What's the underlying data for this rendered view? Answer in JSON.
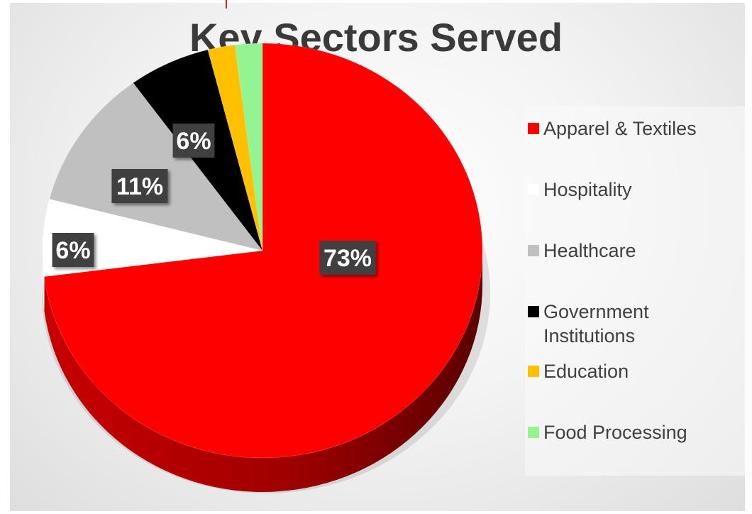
{
  "chart_data": {
    "type": "pie",
    "title": "Key Sectors Served",
    "legend_position": "right",
    "slices": [
      {
        "label": "Apparel & Textiles",
        "value": 73,
        "data_label": "73%",
        "color": "#ff0000"
      },
      {
        "label": "Hospitality",
        "value": 6,
        "data_label": "6%",
        "color": "#ffffff"
      },
      {
        "label": "Healthcare",
        "value": 11,
        "data_label": "11%",
        "color": "#c0c0c0"
      },
      {
        "label": "Government Institutions",
        "value": 6,
        "data_label": "6%",
        "color": "#000000"
      },
      {
        "label": "Education",
        "value": 2,
        "data_label": "",
        "color": "#ffc000"
      },
      {
        "label": "Food Processing",
        "value": 2,
        "data_label": "",
        "color": "#92f592"
      }
    ]
  }
}
